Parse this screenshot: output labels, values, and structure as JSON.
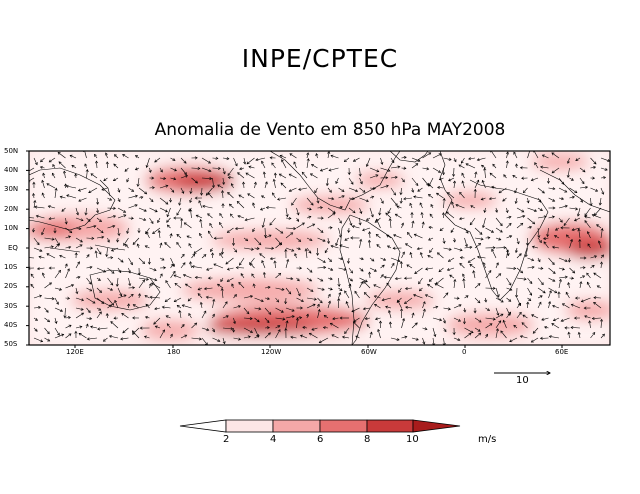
{
  "header": {
    "organization": "INPE/CPTEC",
    "title": "Anomalia de Vento em 850 hPa MAY2008"
  },
  "map": {
    "variable": "Wind anomaly (vectors) and wind speed anomaly (shading)",
    "lat_labels": [
      "50N",
      "40N",
      "30N",
      "20N",
      "10N",
      "EQ",
      "10S",
      "20S",
      "30S",
      "40S",
      "50S"
    ],
    "lon_labels": [
      "120E",
      "180",
      "120W",
      "60W",
      "0",
      "60E"
    ],
    "vector_scale": {
      "label": "10"
    },
    "colorbar": {
      "levels": [
        "2",
        "4",
        "6",
        "8",
        "10"
      ],
      "units": "m/s",
      "colors": [
        "#ffffff",
        "#fde6e6",
        "#f5a8a8",
        "#e67070",
        "#c83a3a",
        "#a81c1c"
      ]
    }
  }
}
